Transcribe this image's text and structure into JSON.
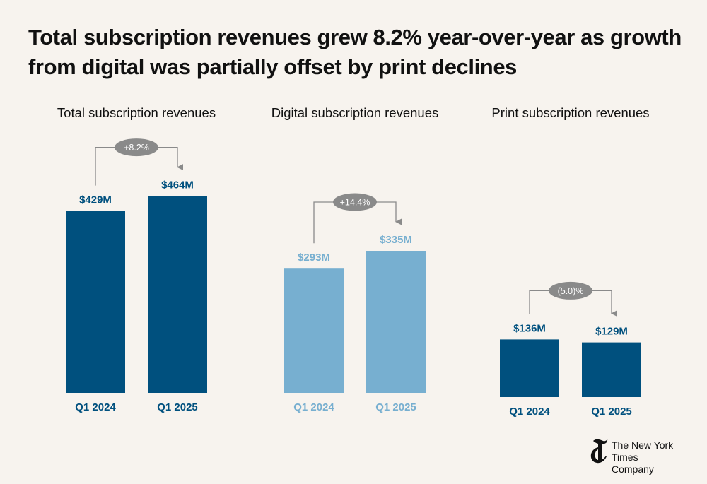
{
  "title": "Total subscription revenues grew 8.2% year-over-year as growth from digital was partially offset by print declines",
  "chart_data": [
    {
      "type": "bar",
      "title": "Total subscription revenues",
      "categories": [
        "Q1 2024",
        "Q1 2025"
      ],
      "values": [
        429,
        464
      ],
      "value_labels": [
        "$429M",
        "$464M"
      ],
      "change_label": "+8.2%",
      "color": "#00507e",
      "label_color": "#00507e"
    },
    {
      "type": "bar",
      "title": "Digital subscription revenues",
      "categories": [
        "Q1 2024",
        "Q1 2025"
      ],
      "values": [
        293,
        335
      ],
      "value_labels": [
        "$293M",
        "$335M"
      ],
      "change_label": "+14.4%",
      "color": "#77afd0",
      "label_color": "#77afd0"
    },
    {
      "type": "bar",
      "title": "Print subscription revenues",
      "categories": [
        "Q1 2024",
        "Q1 2025"
      ],
      "values": [
        136,
        129
      ],
      "value_labels": [
        "$136M",
        "$129M"
      ],
      "change_label": "(5.0)%",
      "color": "#00507e",
      "label_color": "#00507e"
    }
  ],
  "footer": {
    "company_line1": "The New York Times",
    "company_line2": "Company",
    "logo_icon": "nyt-t-logo-icon"
  }
}
